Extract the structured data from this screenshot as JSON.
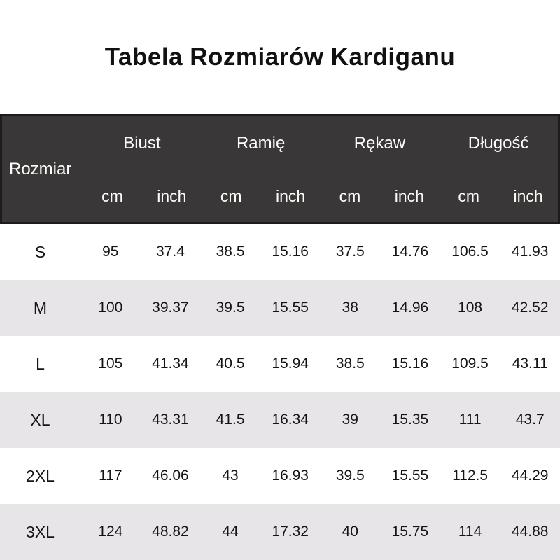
{
  "title": "Tabela Rozmiarów Kardiganu",
  "table": {
    "row_header_label": "Rozmiar",
    "groups": [
      "Biust",
      "Ramię",
      "Rękaw",
      "Długość"
    ],
    "units": [
      "cm",
      "inch",
      "cm",
      "inch",
      "cm",
      "inch",
      "cm",
      "inch"
    ],
    "rows": [
      {
        "size": "S",
        "values": [
          "95",
          "37.4",
          "38.5",
          "15.16",
          "37.5",
          "14.76",
          "106.5",
          "41.93"
        ]
      },
      {
        "size": "M",
        "values": [
          "100",
          "39.37",
          "39.5",
          "15.55",
          "38",
          "14.96",
          "108",
          "42.52"
        ]
      },
      {
        "size": "L",
        "values": [
          "105",
          "41.34",
          "40.5",
          "15.94",
          "38.5",
          "15.16",
          "109.5",
          "43.11"
        ]
      },
      {
        "size": "XL",
        "values": [
          "110",
          "43.31",
          "41.5",
          "16.34",
          "39",
          "15.35",
          "111",
          "43.7"
        ]
      },
      {
        "size": "2XL",
        "values": [
          "117",
          "46.06",
          "43",
          "16.93",
          "39.5",
          "15.55",
          "112.5",
          "44.29"
        ]
      },
      {
        "size": "3XL",
        "values": [
          "124",
          "48.82",
          "44",
          "17.32",
          "40",
          "15.75",
          "114",
          "44.88"
        ]
      }
    ],
    "colors": {
      "header_bg": "#3a3739",
      "header_text": "#fffdf7",
      "header_border": "#1d1b1c",
      "row_alt_bg": "#e7e5e7",
      "row_bg": "#ffffff",
      "text": "#141414"
    }
  }
}
